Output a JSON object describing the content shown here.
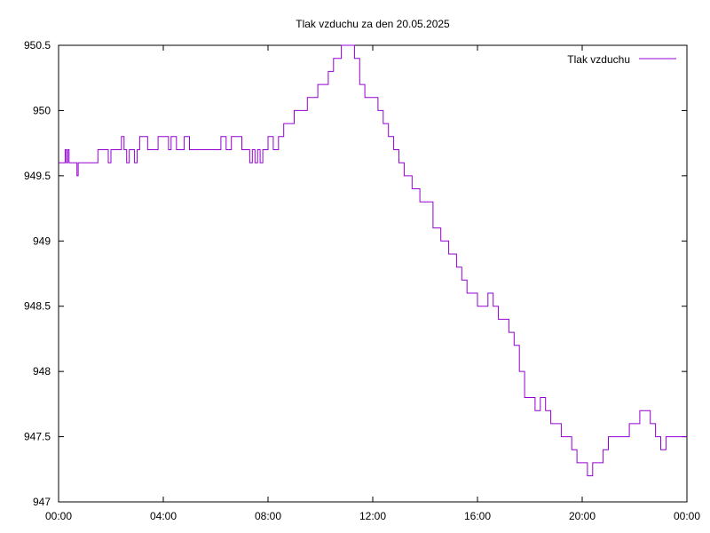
{
  "chart_data": {
    "type": "line",
    "title": "Tlak vzduchu za den 20.05.2025",
    "xlabel": "",
    "ylabel": "",
    "legend_position": "top-right",
    "grid": false,
    "xlim": [
      0,
      24
    ],
    "ylim": [
      947,
      950.5
    ],
    "x_ticks": [
      {
        "value": 0,
        "label": "00:00"
      },
      {
        "value": 4,
        "label": "04:00"
      },
      {
        "value": 8,
        "label": "08:00"
      },
      {
        "value": 12,
        "label": "12:00"
      },
      {
        "value": 16,
        "label": "16:00"
      },
      {
        "value": 20,
        "label": "20:00"
      },
      {
        "value": 24,
        "label": "00:00"
      }
    ],
    "y_ticks": [
      {
        "value": 947,
        "label": "947"
      },
      {
        "value": 947.5,
        "label": "947.5"
      },
      {
        "value": 948,
        "label": "948"
      },
      {
        "value": 948.5,
        "label": "948.5"
      },
      {
        "value": 949,
        "label": "949"
      },
      {
        "value": 949.5,
        "label": "949.5"
      },
      {
        "value": 950,
        "label": "950"
      },
      {
        "value": 950.5,
        "label": "950.5"
      }
    ],
    "series": [
      {
        "name": "Tlak vzduchu",
        "color": "#9400d3",
        "x": [
          0.0,
          0.2,
          0.25,
          0.3,
          0.35,
          0.4,
          0.5,
          0.6,
          0.7,
          0.75,
          0.8,
          1.0,
          1.3,
          1.5,
          1.6,
          1.7,
          1.8,
          1.9,
          2.0,
          2.1,
          2.2,
          2.3,
          2.4,
          2.5,
          2.6,
          2.7,
          2.8,
          2.9,
          3.0,
          3.1,
          3.3,
          3.4,
          3.6,
          3.8,
          4.0,
          4.2,
          4.3,
          4.5,
          4.7,
          4.8,
          5.0,
          5.5,
          6.0,
          6.2,
          6.4,
          6.6,
          7.0,
          7.2,
          7.3,
          7.4,
          7.5,
          7.6,
          7.7,
          7.8,
          7.9,
          8.0,
          8.2,
          8.4,
          8.6,
          8.8,
          9.0,
          9.3,
          9.5,
          9.7,
          9.9,
          10.1,
          10.3,
          10.5,
          10.6,
          10.8,
          11.0,
          11.2,
          11.3,
          11.5,
          11.7,
          12.0,
          12.2,
          12.4,
          12.6,
          12.8,
          13.0,
          13.2,
          13.5,
          13.8,
          14.0,
          14.3,
          14.6,
          14.9,
          15.2,
          15.4,
          15.6,
          15.8,
          16.0,
          16.2,
          16.4,
          16.6,
          16.8,
          17.0,
          17.2,
          17.4,
          17.6,
          17.8,
          18.0,
          18.2,
          18.4,
          18.6,
          18.8,
          19.0,
          19.2,
          19.4,
          19.6,
          19.8,
          20.0,
          20.2,
          20.4,
          20.6,
          20.8,
          21.0,
          21.2,
          21.4,
          21.6,
          21.8,
          22.0,
          22.2,
          22.4,
          22.6,
          22.8,
          23.0,
          23.2,
          23.5,
          23.8,
          24.0
        ],
        "values": [
          949.6,
          949.6,
          949.7,
          949.6,
          949.7,
          949.6,
          949.6,
          949.6,
          949.5,
          949.6,
          949.6,
          949.6,
          949.6,
          949.7,
          949.7,
          949.7,
          949.7,
          949.6,
          949.7,
          949.7,
          949.7,
          949.7,
          949.8,
          949.7,
          949.6,
          949.7,
          949.7,
          949.6,
          949.7,
          949.8,
          949.8,
          949.7,
          949.7,
          949.8,
          949.8,
          949.7,
          949.8,
          949.7,
          949.7,
          949.8,
          949.7,
          949.7,
          949.7,
          949.8,
          949.7,
          949.8,
          949.7,
          949.7,
          949.6,
          949.7,
          949.6,
          949.7,
          949.6,
          949.7,
          949.7,
          949.8,
          949.7,
          949.8,
          949.9,
          949.9,
          950.0,
          950.0,
          950.1,
          950.1,
          950.2,
          950.2,
          950.3,
          950.4,
          950.4,
          950.5,
          950.5,
          950.5,
          950.4,
          950.2,
          950.1,
          950.1,
          950.0,
          949.9,
          949.8,
          949.7,
          949.6,
          949.5,
          949.4,
          949.3,
          949.3,
          949.1,
          949.0,
          948.9,
          948.8,
          948.7,
          948.6,
          948.6,
          948.5,
          948.5,
          948.6,
          948.5,
          948.4,
          948.4,
          948.3,
          948.2,
          948.0,
          947.8,
          947.8,
          947.7,
          947.8,
          947.7,
          947.6,
          947.6,
          947.5,
          947.5,
          947.4,
          947.3,
          947.3,
          947.2,
          947.3,
          947.3,
          947.4,
          947.5,
          947.5,
          947.5,
          947.5,
          947.6,
          947.6,
          947.7,
          947.7,
          947.6,
          947.5,
          947.4,
          947.5,
          947.5,
          947.5,
          947.5
        ]
      }
    ]
  }
}
